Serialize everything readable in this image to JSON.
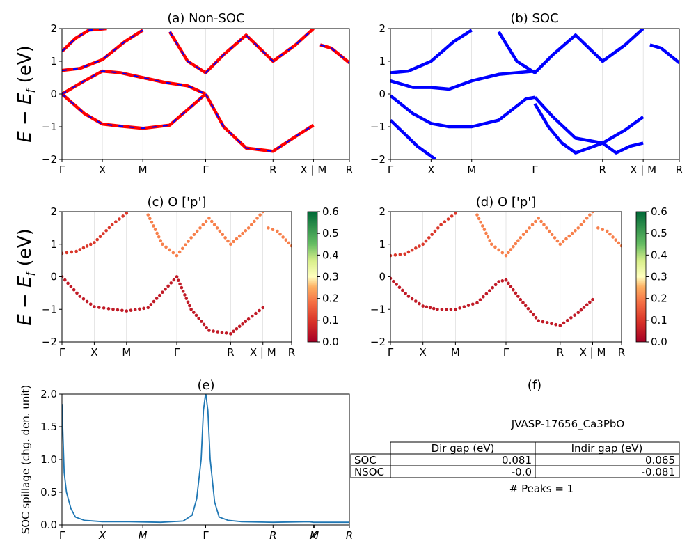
{
  "figure": {
    "kpoint_labels_full": [
      "Γ",
      "X",
      "M",
      "Γ",
      "R",
      "X | M",
      "R"
    ],
    "ylabel_energy": "E − E_f (eV)",
    "colorbar_ticks": [
      "0.0",
      "0.1",
      "0.2",
      "0.3",
      "0.4",
      "0.5",
      "0.6"
    ]
  },
  "chart_data": [
    {
      "id": "a",
      "type": "line",
      "title": "(a) Non-SOC",
      "ylabel": "E − E_f (eV)",
      "ylim": [
        -2,
        2
      ],
      "yticks": [
        "−2",
        "−1",
        "0",
        "1",
        "2"
      ],
      "x_kpoints": [
        "Γ",
        "X",
        "M",
        "Γ",
        "R",
        "X | M",
        "R"
      ],
      "x_kpoint_positions": [
        0,
        0.9,
        1.8,
        3.2,
        4.7,
        5.6,
        6.4
      ],
      "colors": {
        "series": "#ff0000",
        "dash": "#0000ff"
      },
      "series": [
        {
          "x": [
            0,
            0.5,
            0.9,
            1.3,
            1.8,
            2.4,
            3.2
          ],
          "y": [
            0,
            -0.6,
            -0.92,
            -0.98,
            -1.05,
            -0.95,
            0
          ]
        },
        {
          "x": [
            3.2,
            3.6,
            4.1,
            4.7,
            5.2,
            5.6
          ],
          "y": [
            0,
            -1.0,
            -1.65,
            -1.75,
            -1.3,
            -0.95
          ]
        },
        {
          "x": [
            0,
            0.4,
            0.9,
            1.4,
            1.8
          ],
          "y": [
            0.72,
            0.78,
            1.05,
            1.6,
            1.95
          ]
        },
        {
          "x": [
            0,
            0.5,
            0.9,
            1.3,
            1.8,
            2.3,
            2.8,
            3.2
          ],
          "y": [
            0,
            0.4,
            0.7,
            0.65,
            0.5,
            0.35,
            0.25,
            0
          ]
        },
        {
          "x": [
            2.4,
            2.8,
            3.2,
            3.6,
            4.1,
            4.7,
            5.2,
            5.6
          ],
          "y": [
            1.9,
            1.0,
            0.65,
            1.2,
            1.8,
            1.0,
            1.5,
            2.0
          ]
        },
        {
          "x": [
            5.75,
            6.0,
            6.4
          ],
          "y": [
            1.5,
            1.4,
            0.95
          ]
        },
        {
          "x": [
            0,
            0.3,
            0.6,
            1.0
          ],
          "y": [
            1.3,
            1.7,
            1.95,
            2.0
          ]
        }
      ]
    },
    {
      "id": "b",
      "type": "line",
      "title": "(b) SOC",
      "ylim": [
        -2,
        2
      ],
      "yticks": [
        "−2",
        "−1",
        "0",
        "1",
        "2"
      ],
      "x_kpoints": [
        "Γ",
        "X",
        "M",
        "Γ",
        "R",
        "X | M",
        "R"
      ],
      "x_kpoint_positions": [
        0,
        0.9,
        1.8,
        3.2,
        4.7,
        5.6,
        6.4
      ],
      "colors": {
        "series": "#0000ff"
      },
      "series": [
        {
          "x": [
            0,
            0.5,
            0.9,
            1.3,
            1.8,
            2.4,
            3.0,
            3.2
          ],
          "y": [
            -0.05,
            -0.6,
            -0.9,
            -1.0,
            -1.0,
            -0.8,
            -0.15,
            -0.1
          ]
        },
        {
          "x": [
            3.2,
            3.6,
            4.1,
            4.7,
            5.2,
            5.6
          ],
          "y": [
            -0.1,
            -0.7,
            -1.35,
            -1.5,
            -1.1,
            -0.7
          ]
        },
        {
          "x": [
            0,
            0.3,
            0.6,
            1.0
          ],
          "y": [
            -0.8,
            -1.2,
            -1.6,
            -2.0
          ]
        },
        {
          "x": [
            3.2,
            3.5,
            3.8,
            4.1,
            4.5,
            4.7,
            5.0,
            5.3,
            5.6
          ],
          "y": [
            -0.3,
            -1.0,
            -1.5,
            -1.8,
            -1.6,
            -1.5,
            -1.8,
            -1.6,
            -1.5
          ]
        },
        {
          "x": [
            0,
            0.4,
            0.9,
            1.4,
            1.8
          ],
          "y": [
            0.65,
            0.7,
            1.0,
            1.6,
            1.95
          ]
        },
        {
          "x": [
            0,
            0.5,
            0.9,
            1.3,
            1.8,
            2.4,
            3.2
          ],
          "y": [
            0.4,
            0.2,
            0.2,
            0.15,
            0.4,
            0.6,
            0.7
          ]
        },
        {
          "x": [
            2.4,
            2.8,
            3.2,
            3.6,
            4.1,
            4.7,
            5.2,
            5.6
          ],
          "y": [
            1.9,
            1.0,
            0.65,
            1.2,
            1.8,
            1.0,
            1.5,
            2.0
          ]
        },
        {
          "x": [
            5.75,
            6.0,
            6.4
          ],
          "y": [
            1.5,
            1.4,
            0.95
          ]
        }
      ]
    },
    {
      "id": "c",
      "type": "scatter",
      "title": "(c)  O ['p']",
      "ylabel": "E − E_f (eV)",
      "ylim": [
        -2,
        2
      ],
      "yticks": [
        "−2",
        "−1",
        "0",
        "1",
        "2"
      ],
      "x_kpoints": [
        "Γ",
        "X",
        "M",
        "Γ",
        "R",
        "X | M",
        "R"
      ],
      "x_kpoint_positions": [
        0,
        0.9,
        1.8,
        3.2,
        4.7,
        5.6,
        6.4
      ],
      "colorbar": {
        "min": 0.0,
        "max": 0.6,
        "ticks": [
          "0.0",
          "0.1",
          "0.2",
          "0.3",
          "0.4",
          "0.5",
          "0.6"
        ]
      },
      "series": [
        {
          "x": [
            0,
            0.5,
            0.9,
            1.3,
            1.8,
            2.4,
            3.2
          ],
          "y": [
            0,
            -0.6,
            -0.92,
            -0.98,
            -1.05,
            -0.95,
            0
          ],
          "weight": 0.05
        },
        {
          "x": [
            3.2,
            3.6,
            4.1,
            4.7,
            5.2,
            5.6
          ],
          "y": [
            0,
            -1.0,
            -1.65,
            -1.75,
            -1.3,
            -0.95
          ],
          "weight": 0.05
        },
        {
          "x": [
            0,
            0.4,
            0.9,
            1.4,
            1.8
          ],
          "y": [
            0.72,
            0.78,
            1.05,
            1.6,
            1.95
          ],
          "weight": 0.1
        },
        {
          "x": [
            2.4,
            2.8,
            3.2,
            3.6,
            4.1,
            4.7,
            5.2,
            5.6
          ],
          "y": [
            1.9,
            1.0,
            0.65,
            1.2,
            1.8,
            1.0,
            1.5,
            2.0
          ],
          "weight": 0.2
        },
        {
          "x": [
            5.75,
            6.0,
            6.4
          ],
          "y": [
            1.5,
            1.4,
            0.95
          ],
          "weight": 0.2
        }
      ]
    },
    {
      "id": "d",
      "type": "scatter",
      "title": "(d) O ['p']",
      "ylim": [
        -2,
        2
      ],
      "yticks": [
        "−2",
        "−1",
        "0",
        "1",
        "2"
      ],
      "x_kpoints": [
        "Γ",
        "X",
        "M",
        "Γ",
        "R",
        "X | M",
        "R"
      ],
      "x_kpoint_positions": [
        0,
        0.9,
        1.8,
        3.2,
        4.7,
        5.6,
        6.4
      ],
      "colorbar": {
        "min": 0.0,
        "max": 0.6,
        "ticks": [
          "0.0",
          "0.1",
          "0.2",
          "0.3",
          "0.4",
          "0.5",
          "0.6"
        ]
      },
      "series": [
        {
          "x": [
            0,
            0.5,
            0.9,
            1.3,
            1.8,
            2.4,
            3.0,
            3.2
          ],
          "y": [
            -0.05,
            -0.6,
            -0.9,
            -1.0,
            -1.0,
            -0.8,
            -0.15,
            -0.1
          ],
          "weight": 0.05
        },
        {
          "x": [
            3.2,
            3.6,
            4.1,
            4.7,
            5.2,
            5.6
          ],
          "y": [
            -0.1,
            -0.7,
            -1.35,
            -1.5,
            -1.1,
            -0.7
          ],
          "weight": 0.05
        },
        {
          "x": [
            0,
            0.4,
            0.9,
            1.4,
            1.8
          ],
          "y": [
            0.65,
            0.7,
            1.0,
            1.6,
            1.95
          ],
          "weight": 0.1
        },
        {
          "x": [
            2.4,
            2.8,
            3.2,
            3.6,
            4.1,
            4.7,
            5.2,
            5.6
          ],
          "y": [
            1.9,
            1.0,
            0.65,
            1.2,
            1.8,
            1.0,
            1.5,
            2.0
          ],
          "weight": 0.2
        },
        {
          "x": [
            5.75,
            6.0,
            6.4
          ],
          "y": [
            1.5,
            1.4,
            0.95
          ],
          "weight": 0.2
        }
      ]
    },
    {
      "id": "e",
      "type": "line",
      "title": "(e)",
      "ylabel": "SOC spillage (chg. den. unit)",
      "ylim": [
        0,
        2.0
      ],
      "yticks": [
        "0.0",
        "0.5",
        "1.0",
        "1.5",
        "2.0"
      ],
      "x_kpoints": [
        "Γ",
        "X",
        "M",
        "Γ",
        "R",
        "X",
        "M",
        "R"
      ],
      "x_kpoint_positions": [
        0,
        0.9,
        1.8,
        3.2,
        4.7,
        5.6,
        5.62,
        6.4
      ],
      "colors": {
        "series": "#1f77b4"
      },
      "series": [
        {
          "x": [
            0,
            0.05,
            0.1,
            0.2,
            0.3,
            0.5,
            0.9,
            1.5,
            2.2,
            2.7,
            2.9,
            3.0,
            3.1,
            3.15,
            3.2,
            3.25,
            3.3,
            3.4,
            3.5,
            3.7,
            4.0,
            4.7,
            5.5,
            5.6,
            6.0,
            6.4
          ],
          "y": [
            1.85,
            0.8,
            0.5,
            0.25,
            0.12,
            0.07,
            0.05,
            0.05,
            0.04,
            0.06,
            0.15,
            0.4,
            1.0,
            1.75,
            2.02,
            1.75,
            1.0,
            0.35,
            0.12,
            0.07,
            0.05,
            0.04,
            0.05,
            0.04,
            0.04,
            0.04
          ]
        }
      ]
    }
  ],
  "table": {
    "title": "(f)",
    "material": "JVASP-17656_Ca3PbO",
    "headers": [
      "",
      "Dir gap (eV)",
      "Indir gap (eV)"
    ],
    "rows": [
      [
        "SOC",
        "0.081",
        "0.065"
      ],
      [
        "NSOC",
        "-0.0",
        "-0.081"
      ]
    ],
    "peaks": "# Peaks = 1"
  }
}
